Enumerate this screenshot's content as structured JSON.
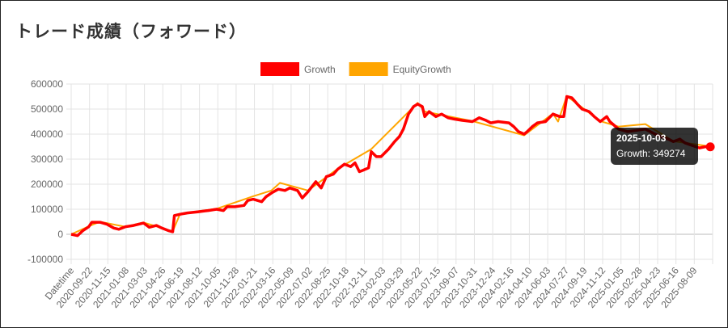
{
  "page_title": "トレード成績（フォワード）",
  "chart_data": {
    "type": "line",
    "title": "",
    "xlabel": "",
    "ylabel": "",
    "ylim": [
      -100000,
      600000
    ],
    "yticks": [
      -100000,
      0,
      100000,
      200000,
      300000,
      400000,
      500000,
      600000
    ],
    "xlim": [
      "2020-08-01",
      "2025-10-10"
    ],
    "x_tick_labels": [
      "Datetime",
      "2020-09-22",
      "2020-11-15",
      "2021-01-08",
      "2021-03-03",
      "2021-04-26",
      "2021-06-19",
      "2021-08-12",
      "2021-10-05",
      "2021-11-28",
      "2022-01-21",
      "2022-03-16",
      "2022-05-09",
      "2022-07-02",
      "2022-08-25",
      "2022-10-18",
      "2022-12-11",
      "2023-02-03",
      "2023-03-29",
      "2023-05-22",
      "2023-07-15",
      "2023-09-07",
      "2023-10-31",
      "2023-12-24",
      "2024-02-16",
      "2024-04-10",
      "2024-06-03",
      "2024-07-27",
      "2024-09-19",
      "2024-11-12",
      "2025-01-05",
      "2025-02-28",
      "2025-04-23",
      "2025-06-16",
      "2025-08-09"
    ],
    "grid": true,
    "legend_position": "top",
    "series": [
      {
        "name": "Growth",
        "color": "#ff0000",
        "points": [
          [
            "2020-08-01",
            0
          ],
          [
            "2020-08-20",
            -5000
          ],
          [
            "2020-09-05",
            15000
          ],
          [
            "2020-09-22",
            30000
          ],
          [
            "2020-10-01",
            48000
          ],
          [
            "2020-10-25",
            48000
          ],
          [
            "2020-11-15",
            40000
          ],
          [
            "2020-12-05",
            25000
          ],
          [
            "2020-12-20",
            20000
          ],
          [
            "2021-01-08",
            30000
          ],
          [
            "2021-02-01",
            35000
          ],
          [
            "2021-03-03",
            45000
          ],
          [
            "2021-03-20",
            28000
          ],
          [
            "2021-04-10",
            35000
          ],
          [
            "2021-04-26",
            25000
          ],
          [
            "2021-05-15",
            15000
          ],
          [
            "2021-05-28",
            10000
          ],
          [
            "2021-06-02",
            75000
          ],
          [
            "2021-06-19",
            80000
          ],
          [
            "2021-07-10",
            85000
          ],
          [
            "2021-08-12",
            90000
          ],
          [
            "2021-09-10",
            95000
          ],
          [
            "2021-10-05",
            100000
          ],
          [
            "2021-10-25",
            95000
          ],
          [
            "2021-11-05",
            110000
          ],
          [
            "2021-11-28",
            110000
          ],
          [
            "2021-12-25",
            115000
          ],
          [
            "2022-01-05",
            135000
          ],
          [
            "2022-01-21",
            140000
          ],
          [
            "2022-02-15",
            130000
          ],
          [
            "2022-02-28",
            150000
          ],
          [
            "2022-03-16",
            165000
          ],
          [
            "2022-04-05",
            180000
          ],
          [
            "2022-04-25",
            175000
          ],
          [
            "2022-05-09",
            185000
          ],
          [
            "2022-06-01",
            175000
          ],
          [
            "2022-06-15",
            145000
          ],
          [
            "2022-07-02",
            170000
          ],
          [
            "2022-07-25",
            210000
          ],
          [
            "2022-08-10",
            185000
          ],
          [
            "2022-08-25",
            230000
          ],
          [
            "2022-09-15",
            240000
          ],
          [
            "2022-09-28",
            260000
          ],
          [
            "2022-10-18",
            280000
          ],
          [
            "2022-11-05",
            270000
          ],
          [
            "2022-11-18",
            285000
          ],
          [
            "2022-12-01",
            250000
          ],
          [
            "2022-12-11",
            255000
          ],
          [
            "2022-12-28",
            265000
          ],
          [
            "2023-01-05",
            330000
          ],
          [
            "2023-01-20",
            310000
          ],
          [
            "2023-02-03",
            310000
          ],
          [
            "2023-02-25",
            340000
          ],
          [
            "2023-03-15",
            370000
          ],
          [
            "2023-03-29",
            390000
          ],
          [
            "2023-04-10",
            420000
          ],
          [
            "2023-04-25",
            480000
          ],
          [
            "2023-05-10",
            510000
          ],
          [
            "2023-05-22",
            520000
          ],
          [
            "2023-06-05",
            510000
          ],
          [
            "2023-06-12",
            470000
          ],
          [
            "2023-06-25",
            490000
          ],
          [
            "2023-07-15",
            470000
          ],
          [
            "2023-08-01",
            480000
          ],
          [
            "2023-08-20",
            465000
          ],
          [
            "2023-09-07",
            460000
          ],
          [
            "2023-10-01",
            455000
          ],
          [
            "2023-10-31",
            450000
          ],
          [
            "2023-11-20",
            465000
          ],
          [
            "2023-12-10",
            455000
          ],
          [
            "2023-12-24",
            445000
          ],
          [
            "2024-01-15",
            450000
          ],
          [
            "2024-02-16",
            445000
          ],
          [
            "2024-03-01",
            430000
          ],
          [
            "2024-03-15",
            410000
          ],
          [
            "2024-04-01",
            400000
          ],
          [
            "2024-04-10",
            410000
          ],
          [
            "2024-04-25",
            430000
          ],
          [
            "2024-05-10",
            445000
          ],
          [
            "2024-06-03",
            450000
          ],
          [
            "2024-06-25",
            480000
          ],
          [
            "2024-07-15",
            470000
          ],
          [
            "2024-07-27",
            470000
          ],
          [
            "2024-08-05",
            550000
          ],
          [
            "2024-08-20",
            545000
          ],
          [
            "2024-09-05",
            520000
          ],
          [
            "2024-09-19",
            500000
          ],
          [
            "2024-10-10",
            490000
          ],
          [
            "2024-10-25",
            470000
          ],
          [
            "2024-11-12",
            450000
          ],
          [
            "2024-12-01",
            470000
          ],
          [
            "2024-12-10",
            450000
          ],
          [
            "2025-01-05",
            420000
          ],
          [
            "2025-02-01",
            410000
          ],
          [
            "2025-02-28",
            415000
          ],
          [
            "2025-03-25",
            420000
          ],
          [
            "2025-04-23",
            400000
          ],
          [
            "2025-05-10",
            390000
          ],
          [
            "2025-06-01",
            380000
          ],
          [
            "2025-06-16",
            370000
          ],
          [
            "2025-07-05",
            380000
          ],
          [
            "2025-07-20",
            365000
          ],
          [
            "2025-08-09",
            355000
          ],
          [
            "2025-09-01",
            345000
          ],
          [
            "2025-09-20",
            350000
          ],
          [
            "2025-10-03",
            349274
          ]
        ]
      },
      {
        "name": "EquityGrowth",
        "color": "#ffa500",
        "points": [
          [
            "2020-08-01",
            0
          ],
          [
            "2020-09-22",
            32000
          ],
          [
            "2020-10-25",
            50000
          ],
          [
            "2021-01-08",
            30000
          ],
          [
            "2021-03-03",
            47000
          ],
          [
            "2021-05-28",
            12000
          ],
          [
            "2021-06-19",
            82000
          ],
          [
            "2021-10-05",
            102000
          ],
          [
            "2022-01-21",
            152000
          ],
          [
            "2022-03-16",
            175000
          ],
          [
            "2022-04-10",
            205000
          ],
          [
            "2022-07-02",
            175000
          ],
          [
            "2022-09-28",
            262000
          ],
          [
            "2023-01-05",
            340000
          ],
          [
            "2023-05-22",
            525000
          ],
          [
            "2023-06-12",
            490000
          ],
          [
            "2023-10-31",
            452000
          ],
          [
            "2024-04-01",
            395000
          ],
          [
            "2024-06-25",
            482000
          ],
          [
            "2024-07-10",
            450000
          ],
          [
            "2024-08-05",
            552000
          ],
          [
            "2024-11-12",
            452000
          ],
          [
            "2025-01-05",
            430000
          ],
          [
            "2025-03-25",
            440000
          ],
          [
            "2025-06-16",
            372000
          ],
          [
            "2025-10-03",
            351000
          ]
        ]
      }
    ],
    "tooltip": {
      "date": "2025-10-03",
      "label": "Growth: 349274"
    }
  }
}
